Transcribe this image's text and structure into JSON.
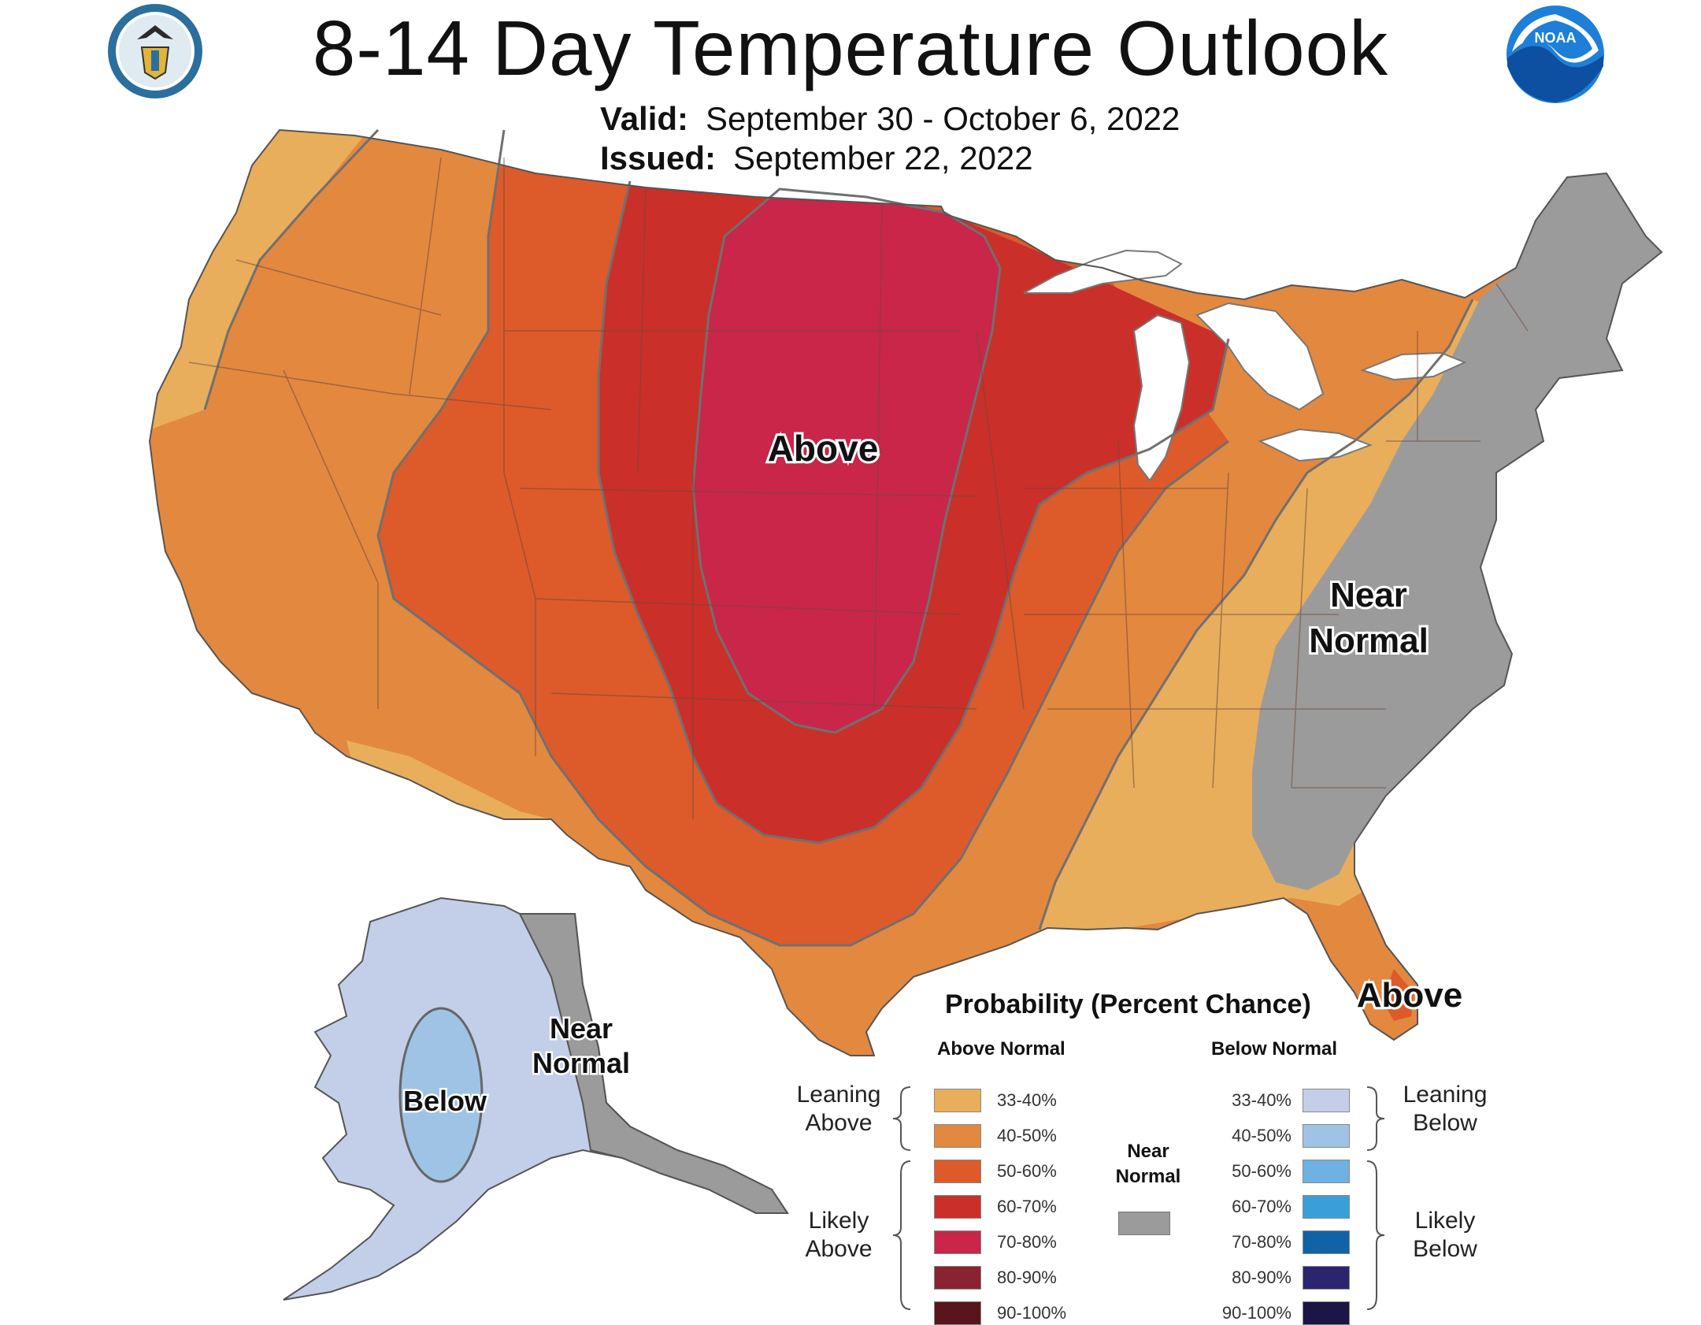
{
  "header": {
    "title": "8-14 Day Temperature Outlook",
    "valid_label": "Valid:",
    "valid_value": "September 30 - October 6, 2022",
    "issued_label": "Issued:",
    "issued_value": "September 22, 2022"
  },
  "logos": {
    "left": "department-of-commerce-seal",
    "right": "noaa-logo",
    "noaa_text": "NOAA"
  },
  "map": {
    "labels": {
      "above_central": "Above",
      "near_normal_east_1": "Near",
      "near_normal_east_2": "Normal",
      "above_florida": "Above",
      "alaska_below": "Below",
      "alaska_near_1": "Near",
      "alaska_near_2": "Normal"
    }
  },
  "legend": {
    "title": "Probability (Percent Chance)",
    "above_header": "Above Normal",
    "below_header": "Below Normal",
    "leaning_above_1": "Leaning",
    "leaning_above_2": "Above",
    "likely_above_1": "Likely",
    "likely_above_2": "Above",
    "leaning_below_1": "Leaning",
    "leaning_below_2": "Below",
    "likely_below_1": "Likely",
    "likely_below_2": "Below",
    "near_normal_1": "Near",
    "near_normal_2": "Normal",
    "above": [
      {
        "label": "33-40%",
        "color": "#e8ae5c"
      },
      {
        "label": "40-50%",
        "color": "#e3883f"
      },
      {
        "label": "50-60%",
        "color": "#dd5a2b"
      },
      {
        "label": "60-70%",
        "color": "#cb2f2a"
      },
      {
        "label": "70-80%",
        "color": "#c9264a"
      },
      {
        "label": "80-90%",
        "color": "#8a2232"
      },
      {
        "label": "90-100%",
        "color": "#5a141c"
      }
    ],
    "below": [
      {
        "label": "33-40%",
        "color": "#c3cfe8"
      },
      {
        "label": "40-50%",
        "color": "#9fc3e4"
      },
      {
        "label": "50-60%",
        "color": "#6fb1e3"
      },
      {
        "label": "60-70%",
        "color": "#3a9ed9"
      },
      {
        "label": "70-80%",
        "color": "#1163a8"
      },
      {
        "label": "80-90%",
        "color": "#2b2570"
      },
      {
        "label": "90-100%",
        "color": "#1c1646"
      }
    ],
    "near_color": "#9b9b9b"
  }
}
